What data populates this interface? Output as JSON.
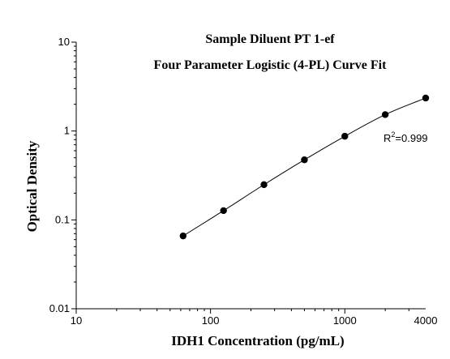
{
  "chart_data": {
    "type": "scatter",
    "title": "Sample Diluent PT 1-ef",
    "subtitle": "Four Parameter Logistic (4-PL) Curve Fit",
    "xlabel": "IDH1 Concentration (pg/mL)",
    "ylabel": "Optical Density",
    "x_scale": "log",
    "y_scale": "log",
    "xlim": [
      10,
      4000
    ],
    "ylim": [
      0.01,
      10
    ],
    "x_ticks": [
      {
        "value": 10,
        "label": "10"
      },
      {
        "value": 100,
        "label": "100"
      },
      {
        "value": 1000,
        "label": "1000"
      },
      {
        "value": 4000,
        "label": "4000"
      }
    ],
    "y_ticks": [
      {
        "value": 10,
        "label": "10"
      },
      {
        "value": 1,
        "label": "1"
      },
      {
        "value": 0.1,
        "label": "0.1"
      },
      {
        "value": 0.01,
        "label": "0.01"
      }
    ],
    "points": [
      {
        "x": 62.5,
        "y": 0.066
      },
      {
        "x": 125,
        "y": 0.127
      },
      {
        "x": 250,
        "y": 0.249
      },
      {
        "x": 500,
        "y": 0.474
      },
      {
        "x": 1000,
        "y": 0.873
      },
      {
        "x": 2000,
        "y": 1.53
      },
      {
        "x": 4000,
        "y": 2.35
      }
    ],
    "annotation": {
      "base": "R",
      "sup": "2",
      "value": "=0.999"
    },
    "grid": false,
    "legend": "none"
  }
}
